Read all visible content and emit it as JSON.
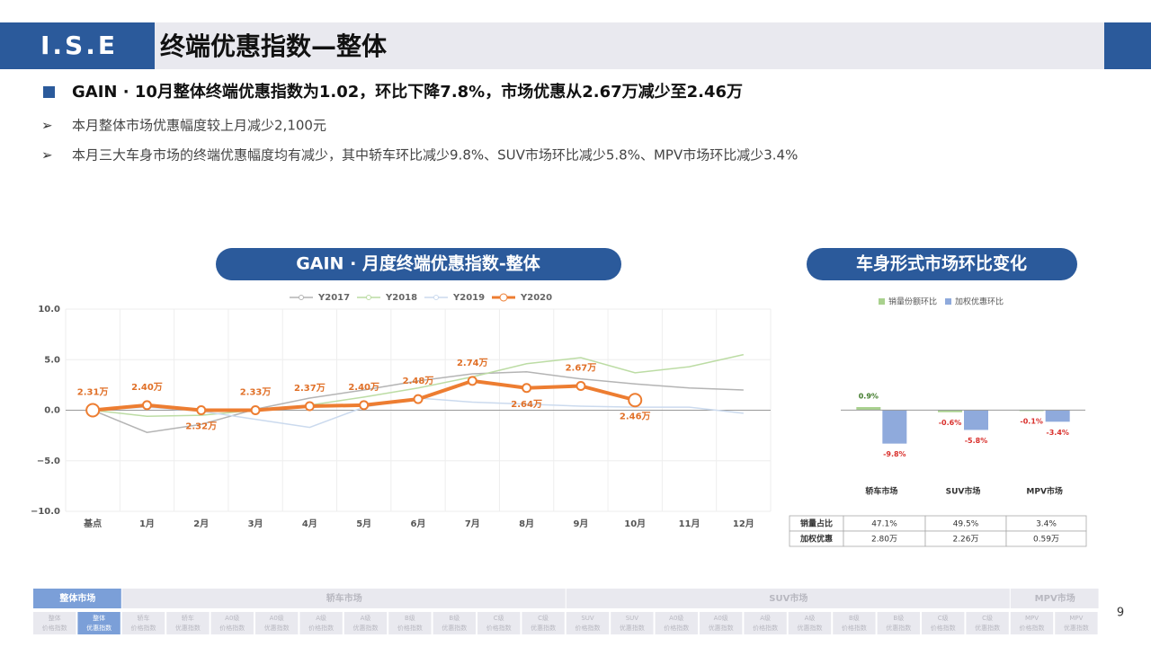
{
  "header": {
    "logo": "I.S.E",
    "title": "终端优惠指数—整体"
  },
  "headline": "GAIN · 10月整体终端优惠指数为1.02，环比下降7.8%，市场优惠从2.67万减少至2.46万",
  "bullets": [
    "本月整体市场优惠幅度较上月减少2,100元",
    "本月三大车身市场的终端优惠幅度均有减少，其中轿车环比减少9.8%、SUV市场环比减少5.8%、MPV市场环比减少3.4%"
  ],
  "chart_data": [
    {
      "type": "line",
      "title": "GAIN · 月度终端优惠指数-整体",
      "categories": [
        "基点",
        "1月",
        "2月",
        "3月",
        "4月",
        "5月",
        "6月",
        "7月",
        "8月",
        "9月",
        "10月",
        "11月",
        "12月"
      ],
      "series": [
        {
          "name": "Y2017",
          "color": "#b4b4b4",
          "values": [
            0,
            -2.2,
            -1.4,
            0.1,
            1.2,
            2.0,
            2.9,
            3.6,
            3.8,
            3.1,
            2.6,
            2.2,
            2.0
          ]
        },
        {
          "name": "Y2018",
          "color": "#bcdca4",
          "values": [
            0,
            -0.6,
            -0.5,
            0,
            0.5,
            1.3,
            2.2,
            3.3,
            4.6,
            5.2,
            3.7,
            4.3,
            5.5
          ]
        },
        {
          "name": "Y2019",
          "color": "#cbdaee",
          "values": [
            0,
            0.3,
            -0.1,
            -0.9,
            -1.7,
            0.3,
            1.2,
            0.8,
            0.6,
            0.4,
            0.3,
            0.3,
            -0.3
          ]
        },
        {
          "name": "Y2020",
          "color": "#ed7d31",
          "values": [
            0,
            0.5,
            0,
            0,
            0.4,
            0.5,
            1.1,
            2.9,
            2.2,
            2.4,
            1.0,
            null,
            null
          ]
        }
      ],
      "annotations": [
        "2.31万",
        "2.40万",
        "2.32万",
        "2.33万",
        "2.37万",
        "2.40万",
        "2.48万",
        "2.74万",
        "2.64万",
        "2.67万",
        "2.46万",
        null,
        null
      ],
      "ylim": [
        -10,
        10
      ],
      "yticks": [
        {
          "value": -10,
          "label": "−10.0"
        },
        {
          "value": -5,
          "label": "−5.0"
        },
        {
          "value": 0,
          "label": "0.0"
        },
        {
          "value": 5,
          "label": "5.0"
        },
        {
          "value": 10,
          "label": "10.0"
        }
      ],
      "grid": true,
      "legend": "top"
    },
    {
      "type": "bar",
      "title": "车身形式市场环比变化",
      "categories": [
        "轿车市场",
        "SUV市场",
        "MPV市场"
      ],
      "series": [
        {
          "name": "销量份额环比",
          "color": "#a9d18e",
          "values": [
            0.9,
            -0.6,
            -0.1
          ],
          "value_labels": [
            "0.9%",
            "-0.6%",
            "-0.1%"
          ]
        },
        {
          "name": "加权优惠环比",
          "color": "#8faadc",
          "values": [
            -9.8,
            -5.8,
            -3.4
          ],
          "value_labels": [
            "-9.8%",
            "-5.8%",
            "-3.4%"
          ]
        }
      ],
      "ylim": [
        -12,
        3
      ],
      "legend": "top"
    }
  ],
  "table": {
    "rows": [
      [
        "销量占比",
        "47.1%",
        "49.5%",
        "3.4%"
      ],
      [
        "加权优惠",
        "2.80万",
        "2.26万",
        "0.59万"
      ]
    ]
  },
  "nav": [
    {
      "label": "整体市场",
      "selected": true,
      "items": [
        {
          "top": "整体",
          "bottom": "价格指数"
        },
        {
          "top": "整体",
          "bottom": "优惠指数",
          "selected": true
        }
      ]
    },
    {
      "label": "轿车市场",
      "items": [
        {
          "top": "轿车",
          "bottom": "价格指数"
        },
        {
          "top": "轿车",
          "bottom": "优惠指数"
        },
        {
          "top": "A0级",
          "bottom": "价格指数"
        },
        {
          "top": "A0级",
          "bottom": "优惠指数"
        },
        {
          "top": "A级",
          "bottom": "价格指数"
        },
        {
          "top": "A级",
          "bottom": "优惠指数"
        },
        {
          "top": "B级",
          "bottom": "价格指数"
        },
        {
          "top": "B级",
          "bottom": "优惠指数"
        },
        {
          "top": "C级",
          "bottom": "价格指数"
        },
        {
          "top": "C级",
          "bottom": "优惠指数"
        }
      ]
    },
    {
      "label": "SUV市场",
      "items": [
        {
          "top": "SUV",
          "bottom": "价格指数"
        },
        {
          "top": "SUV",
          "bottom": "优惠指数"
        },
        {
          "top": "A0级",
          "bottom": "价格指数"
        },
        {
          "top": "A0级",
          "bottom": "优惠指数"
        },
        {
          "top": "A级",
          "bottom": "价格指数"
        },
        {
          "top": "A级",
          "bottom": "优惠指数"
        },
        {
          "top": "B级",
          "bottom": "价格指数"
        },
        {
          "top": "B级",
          "bottom": "优惠指数"
        },
        {
          "top": "C级",
          "bottom": "价格指数"
        },
        {
          "top": "C级",
          "bottom": "优惠指数"
        }
      ]
    },
    {
      "label": "MPV市场",
      "items": [
        {
          "top": "MPV",
          "bottom": "价格指数"
        },
        {
          "top": "MPV",
          "bottom": "优惠指数"
        }
      ]
    }
  ],
  "page_number": "9"
}
